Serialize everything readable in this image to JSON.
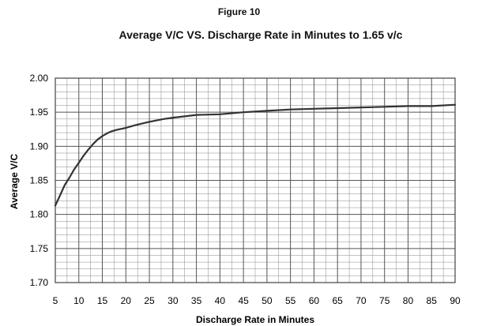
{
  "figure_label": "Figure 10",
  "chart_data": {
    "type": "line",
    "title": "Average V/C VS. Discharge Rate in Minutes to 1.65 v/c",
    "xlabel": "Discharge Rate in Minutes",
    "ylabel": "Average V/C",
    "xlim": [
      5,
      90
    ],
    "ylim": [
      1.7,
      2.0
    ],
    "x_ticks": [
      "5",
      "10",
      "15",
      "20",
      "25",
      "30",
      "35",
      "40",
      "45",
      "50",
      "55",
      "60",
      "65",
      "70",
      "75",
      "80",
      "85",
      "90"
    ],
    "y_ticks": [
      "1.70",
      "1.75",
      "1.80",
      "1.85",
      "1.90",
      "1.95",
      "2.00"
    ],
    "grid": true,
    "legend": "none",
    "colors": {
      "line": "#333333",
      "grid": "#8a8a8a",
      "frame": "#444444"
    },
    "series": [
      {
        "x": [
          5,
          6,
          7,
          8,
          9,
          10,
          11,
          12,
          13,
          14,
          15,
          16,
          17,
          18,
          20,
          22,
          25,
          28,
          30,
          35,
          40,
          45,
          50,
          55,
          60,
          65,
          70,
          75,
          80,
          85,
          90
        ],
        "y": [
          1.813,
          1.828,
          1.843,
          1.854,
          1.866,
          1.876,
          1.886,
          1.895,
          1.903,
          1.91,
          1.915,
          1.919,
          1.922,
          1.924,
          1.927,
          1.931,
          1.936,
          1.94,
          1.942,
          1.946,
          1.947,
          1.95,
          1.952,
          1.954,
          1.955,
          1.956,
          1.957,
          1.958,
          1.959,
          1.959,
          1.961
        ]
      }
    ]
  }
}
